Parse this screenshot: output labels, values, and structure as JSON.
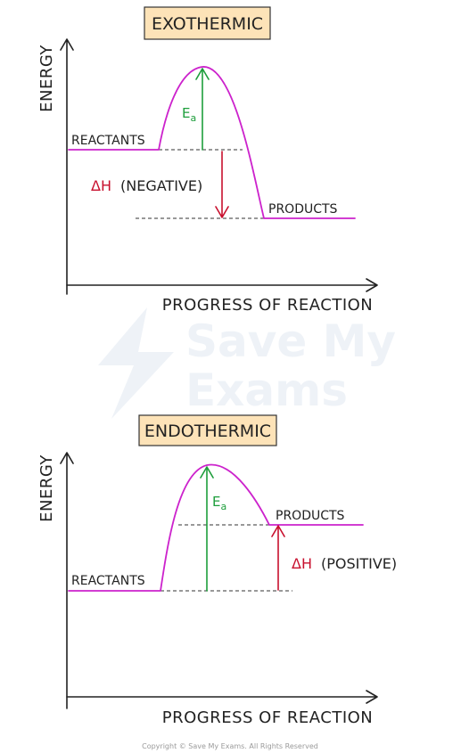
{
  "colors": {
    "curve": "#cc22cc",
    "activation_arrow": "#1e9e3c",
    "enthalpy_arrow": "#c8102e",
    "title_box": "#fde3b8"
  },
  "watermark": {
    "line1": "Save My",
    "line2": "Exams"
  },
  "footer": "Copyright © Save My Exams. All Rights Reserved",
  "diagrams": [
    {
      "title": "EXOTHERMIC",
      "y_axis_label": "ENERGY",
      "x_axis_label": "PROGRESS OF REACTION",
      "reactants_label": "REACTANTS",
      "products_label": "PRODUCTS",
      "ea_symbol": "E",
      "ea_subscript": "a",
      "dh_symbol": "ΔH",
      "dh_text": "(NEGATIVE)"
    },
    {
      "title": "ENDOTHERMIC",
      "y_axis_label": "ENERGY",
      "x_axis_label": "PROGRESS OF REACTION",
      "reactants_label": "REACTANTS",
      "products_label": "PRODUCTS",
      "ea_symbol": "E",
      "ea_subscript": "a",
      "dh_symbol": "ΔH",
      "dh_text": "(POSITIVE)"
    }
  ]
}
